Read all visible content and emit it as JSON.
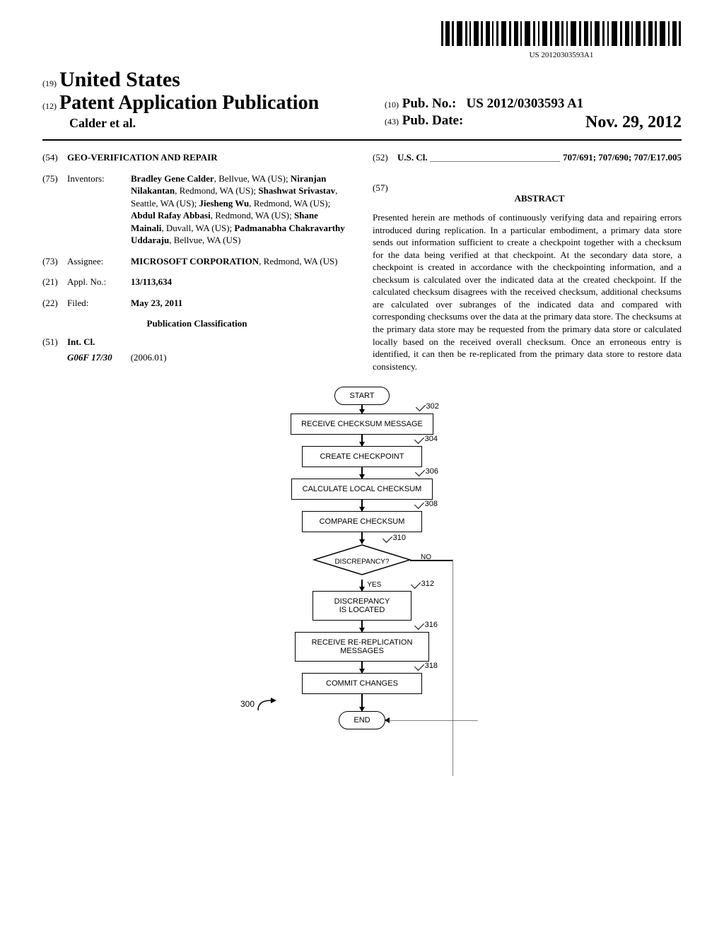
{
  "barcode": {
    "text": "US 20120303593A1"
  },
  "header": {
    "country_inid": "(19)",
    "country": "United States",
    "pub_type_inid": "(12)",
    "pub_type": "Patent Application Publication",
    "authors": "Calder et al.",
    "pub_no_inid": "(10)",
    "pub_no_label": "Pub. No.:",
    "pub_no": "US 2012/0303593 A1",
    "pub_date_inid": "(43)",
    "pub_date_label": "Pub. Date:",
    "pub_date": "Nov. 29, 2012"
  },
  "fields": {
    "title": {
      "inid": "(54)",
      "value": "GEO-VERIFICATION AND REPAIR"
    },
    "inventors": {
      "inid": "(75)",
      "label": "Inventors:",
      "list": [
        {
          "name": "Bradley Gene Calder",
          "loc": ", Bellvue, WA (US); "
        },
        {
          "name": "Niranjan Nilakantan",
          "loc": ", Redmond, WA (US); "
        },
        {
          "name": "Shashwat Srivastav",
          "loc": ", Seattle, WA (US); "
        },
        {
          "name": "Jiesheng Wu",
          "loc": ", Redmond, WA (US); "
        },
        {
          "name": "Abdul Rafay Abbasi",
          "loc": ", Redmond, WA (US); "
        },
        {
          "name": "Shane Mainali",
          "loc": ", Duvall, WA (US); "
        },
        {
          "name": "Padmanabha Chakravarthy Uddaraju",
          "loc": ", Bellvue, WA (US)"
        }
      ]
    },
    "assignee": {
      "inid": "(73)",
      "label": "Assignee:",
      "name": "MICROSOFT CORPORATION",
      "loc": ", Redmond, WA (US)"
    },
    "appl_no": {
      "inid": "(21)",
      "label": "Appl. No.:",
      "value": "13/113,634"
    },
    "filed": {
      "inid": "(22)",
      "label": "Filed:",
      "value": "May 23, 2011"
    },
    "classification_heading": "Publication Classification",
    "int_cl": {
      "inid": "(51)",
      "label": "Int. Cl.",
      "code": "G06F 17/30",
      "date": "(2006.01)"
    },
    "us_cl": {
      "inid": "(52)",
      "label": "U.S. Cl.",
      "value": "707/691; 707/690; 707/E17.005"
    }
  },
  "abstract": {
    "inid": "(57)",
    "heading": "ABSTRACT",
    "text": "Presented herein are methods of continuously verifying data and repairing errors introduced during replication. In a particular embodiment, a primary data store sends out information sufficient to create a checkpoint together with a checksum for the data being verified at that checkpoint. At the secondary data store, a checkpoint is created in accordance with the checkpointing information, and a checksum is calculated over the indicated data at the created checkpoint. If the calculated checksum disagrees with the received checksum, additional checksums are calculated over subranges of the indicated data and compared with corresponding checksums over the data at the primary data store. The checksums at the primary data store may be requested from the primary data store or calculated locally based on the received overall checksum. Once an erroneous entry is identified, it can then be re-replicated from the primary data store to restore data consistency."
  },
  "flowchart": {
    "ref_300": "300",
    "start": "START",
    "end": "END",
    "steps": [
      {
        "ref": "302",
        "text": "RECEIVE CHECKSUM MESSAGE"
      },
      {
        "ref": "304",
        "text": "CREATE CHECKPOINT"
      },
      {
        "ref": "306",
        "text": "CALCULATE LOCAL CHECKSUM"
      },
      {
        "ref": "308",
        "text": "COMPARE CHECKSUM"
      }
    ],
    "decision": {
      "ref": "310",
      "text": "DISCREPANCY?",
      "yes": "YES",
      "no": "NO"
    },
    "steps2": [
      {
        "ref": "312",
        "text": "DISCREPANCY\nIS LOCATED"
      },
      {
        "ref": "316",
        "text": "RECEIVE RE-REPLICATION\nMESSAGES"
      },
      {
        "ref": "318",
        "text": "COMMIT CHANGES"
      }
    ]
  }
}
